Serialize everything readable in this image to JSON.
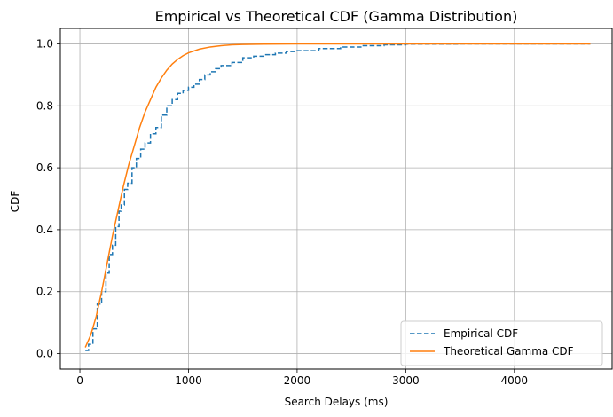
{
  "chart_data": {
    "type": "line",
    "title": "Empirical vs Theoretical CDF (Gamma Distribution)",
    "xlabel": "Search Delays (ms)",
    "ylabel": "CDF",
    "xlim": [
      -180,
      4900
    ],
    "ylim": [
      -0.05,
      1.05
    ],
    "xticks": [
      0,
      1000,
      2000,
      3000,
      4000
    ],
    "xtick_labels": [
      "0",
      "1000",
      "2000",
      "3000",
      "4000"
    ],
    "yticks": [
      0.0,
      0.2,
      0.4,
      0.6,
      0.8,
      1.0
    ],
    "ytick_labels": [
      "0.0",
      "0.2",
      "0.4",
      "0.6",
      "0.8",
      "1.0"
    ],
    "grid": true,
    "legend_position": "lower-right",
    "series": [
      {
        "name": "Empirical CDF",
        "color": "#1f77b4",
        "style": "dashed",
        "step": true,
        "x": [
          50,
          80,
          120,
          160,
          200,
          240,
          270,
          300,
          330,
          360,
          380,
          410,
          440,
          480,
          520,
          560,
          600,
          650,
          700,
          750,
          800,
          850,
          900,
          950,
          1000,
          1050,
          1100,
          1150,
          1200,
          1250,
          1300,
          1400,
          1500,
          1600,
          1700,
          1800,
          1900,
          2000,
          2200,
          2400,
          2600,
          2800,
          3000,
          3500,
          4000,
          4700
        ],
        "y": [
          0.01,
          0.03,
          0.08,
          0.16,
          0.2,
          0.26,
          0.32,
          0.35,
          0.41,
          0.46,
          0.48,
          0.53,
          0.55,
          0.6,
          0.63,
          0.66,
          0.68,
          0.71,
          0.73,
          0.77,
          0.8,
          0.82,
          0.84,
          0.85,
          0.86,
          0.87,
          0.885,
          0.9,
          0.91,
          0.92,
          0.93,
          0.94,
          0.955,
          0.96,
          0.965,
          0.97,
          0.975,
          0.978,
          0.985,
          0.99,
          0.994,
          0.997,
          0.999,
          1.0,
          1.0,
          1.0
        ]
      },
      {
        "name": "Theoretical Gamma CDF",
        "color": "#ff7f0e",
        "style": "solid",
        "step": false,
        "x": [
          50,
          100,
          150,
          200,
          250,
          300,
          350,
          400,
          450,
          500,
          550,
          600,
          650,
          700,
          750,
          800,
          850,
          900,
          950,
          1000,
          1100,
          1200,
          1300,
          1400,
          1500,
          1700,
          2000,
          2500,
          3000,
          4000,
          4700
        ],
        "y": [
          0.02,
          0.06,
          0.12,
          0.2,
          0.29,
          0.38,
          0.46,
          0.54,
          0.61,
          0.67,
          0.73,
          0.78,
          0.82,
          0.86,
          0.89,
          0.915,
          0.935,
          0.95,
          0.962,
          0.971,
          0.983,
          0.99,
          0.994,
          0.997,
          0.998,
          0.999,
          1.0,
          1.0,
          1.0,
          1.0,
          1.0
        ]
      }
    ]
  }
}
